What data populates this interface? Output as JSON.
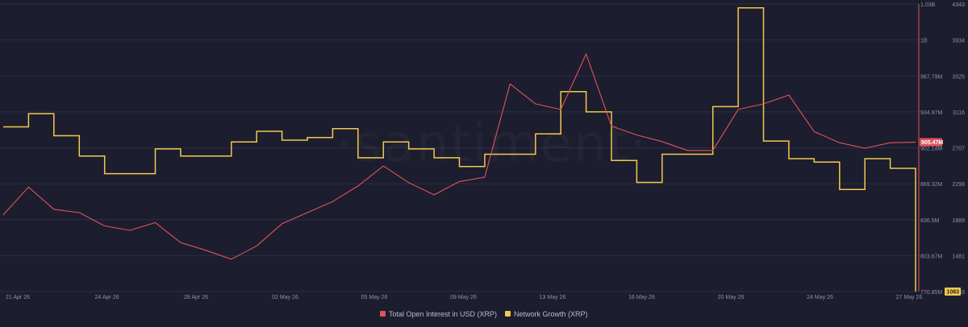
{
  "watermark": "·santiment·",
  "colors": {
    "background": "#1c1d2e",
    "grid": "#2c2e42",
    "open_interest": "#e2535d",
    "network_growth": "#f2c94c",
    "badge_oi_bg": "#e2535d",
    "badge_ng_bg": "#f2c94c"
  },
  "chart_data": {
    "type": "line",
    "title": "",
    "xlabel": "",
    "ylabel": "",
    "x_ticks": [
      "21 Apr 26",
      "24 Apr 26",
      "28 Apr 26",
      "02 May 26",
      "05 May 26",
      "09 May 26",
      "13 May 26",
      "16 May 26",
      "20 May 26",
      "24 May 26",
      "27 May 26"
    ],
    "x_range": [
      "2026-04-21",
      "2026-05-27"
    ],
    "y_left_ticks": [
      "1.03B",
      "1B",
      "967.79M",
      "934.97M",
      "902.14M",
      "869.32M",
      "836.5M",
      "803.67M",
      "770.85M"
    ],
    "y_left_range": [
      770850000,
      1030000000
    ],
    "y_right_ticks": [
      "4343",
      "3934",
      "3525",
      "3116",
      "2707",
      "2298",
      "1889",
      "1481",
      "1083"
    ],
    "y_right_range": [
      1083,
      4343
    ],
    "grid": "horizontal",
    "legend_position": "bottom",
    "last_values": {
      "open_interest": "905.47M",
      "network_growth": "1083"
    },
    "series": [
      {
        "name": "Total Open Interest in USD (XRP)",
        "axis": "left",
        "color": "#e2535d",
        "x": [
          "2026-04-21",
          "2026-04-22",
          "2026-04-23",
          "2026-04-24",
          "2026-04-25",
          "2026-04-26",
          "2026-04-27",
          "2026-04-28",
          "2026-04-29",
          "2026-04-30",
          "2026-05-01",
          "2026-05-02",
          "2026-05-03",
          "2026-05-04",
          "2026-05-05",
          "2026-05-06",
          "2026-05-07",
          "2026-05-08",
          "2026-05-09",
          "2026-05-10",
          "2026-05-11",
          "2026-05-12",
          "2026-05-13",
          "2026-05-14",
          "2026-05-15",
          "2026-05-16",
          "2026-05-17",
          "2026-05-18",
          "2026-05-19",
          "2026-05-20",
          "2026-05-21",
          "2026-05-22",
          "2026-05-23",
          "2026-05-24",
          "2026-05-25",
          "2026-05-26",
          "2026-05-27"
        ],
        "values": [
          840000000,
          865000000,
          845000000,
          842000000,
          830000000,
          826000000,
          833000000,
          815000000,
          808000000,
          800000000,
          812000000,
          832000000,
          842000000,
          852000000,
          866000000,
          884000000,
          869000000,
          858000000,
          870000000,
          874000000,
          958000000,
          940000000,
          935000000,
          985000000,
          920000000,
          912000000,
          906000000,
          898000000,
          898000000,
          935000000,
          940000000,
          948000000,
          915000000,
          905000000,
          900000000,
          905000000,
          905470000
        ]
      },
      {
        "name": "Network Growth (XRP)",
        "axis": "right",
        "color": "#f2c94c",
        "x": [
          "2026-04-21",
          "2026-04-22",
          "2026-04-23",
          "2026-04-24",
          "2026-04-25",
          "2026-04-26",
          "2026-04-27",
          "2026-04-28",
          "2026-04-29",
          "2026-04-30",
          "2026-05-01",
          "2026-05-02",
          "2026-05-03",
          "2026-05-04",
          "2026-05-05",
          "2026-05-06",
          "2026-05-07",
          "2026-05-08",
          "2026-05-09",
          "2026-05-10",
          "2026-05-11",
          "2026-05-12",
          "2026-05-13",
          "2026-05-14",
          "2026-05-15",
          "2026-05-16",
          "2026-05-17",
          "2026-05-18",
          "2026-05-19",
          "2026-05-20",
          "2026-05-21",
          "2026-05-22",
          "2026-05-23",
          "2026-05-24",
          "2026-05-25",
          "2026-05-26",
          "2026-05-27"
        ],
        "values": [
          2950,
          3100,
          2850,
          2620,
          2420,
          2420,
          2700,
          2620,
          2620,
          2780,
          2900,
          2800,
          2830,
          2930,
          2600,
          2780,
          2700,
          2600,
          2500,
          2640,
          2640,
          2870,
          3350,
          3120,
          2570,
          2320,
          2640,
          2640,
          3180,
          4300,
          2790,
          2590,
          2550,
          2240,
          2590,
          2480,
          1083
        ]
      }
    ]
  }
}
